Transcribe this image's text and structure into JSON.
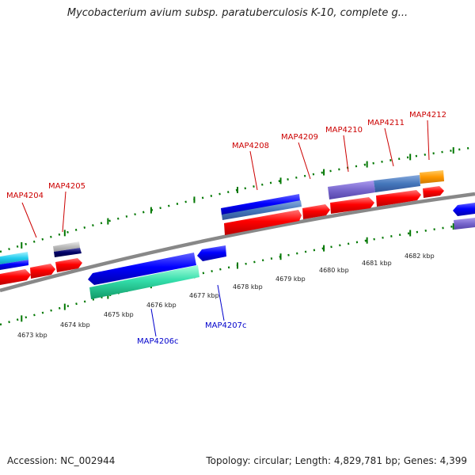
{
  "title": "Mycobacterium avium subsp. paratuberculosis K-10, complete g...",
  "footer": {
    "accession": "Accession: NC_002944",
    "summary": "Topology: circular; Length: 4,829,781 bp; Genes: 4,399"
  },
  "ruler": [
    "4673 kbp",
    "4674 kbp",
    "4675 kbp",
    "4676 kbp",
    "4677 kbp",
    "4678 kbp",
    "4679 kbp",
    "4680 kbp",
    "4681 kbp",
    "4682 kbp"
  ],
  "gene_labels": {
    "map4204": "MAP4204",
    "map4205": "MAP4205",
    "map4206c": "MAP4206c",
    "map4207c": "MAP4207c",
    "map4208": "MAP4208",
    "map4209": "MAP4209",
    "map4210": "MAP4210",
    "map4211": "MAP4211",
    "map4212": "MAP4212"
  },
  "colors": {
    "forward_label": "#cc0000",
    "reverse_label": "#0000cc",
    "cds_red": "#ff0000",
    "cds_blue": "#0000ff",
    "teal": "#33ddaa",
    "slate": "#4477bb",
    "purple": "#7766cc",
    "orange": "#ff9900",
    "navy": "#000066",
    "cyan": "#22ccee",
    "gray_block": "#bbbbbb",
    "backbone": "#888888",
    "guide_dots": "#007700"
  }
}
